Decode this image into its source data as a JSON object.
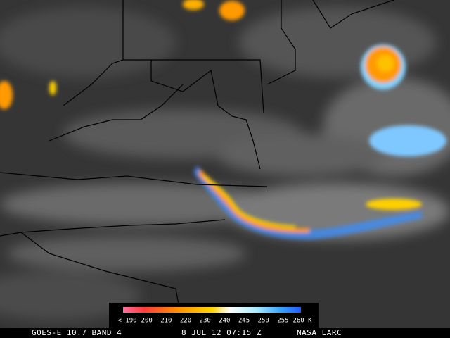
{
  "colorbar": {
    "labels": [
      "< 190",
      "200",
      "210",
      "220",
      "230",
      "240",
      "245",
      "250",
      "255",
      "260 K"
    ]
  },
  "footer": {
    "satellite": "GOES-E 10.7 BAND 4",
    "time": "8 JUL 12 07:15 Z",
    "credit": "NASA LARC"
  }
}
